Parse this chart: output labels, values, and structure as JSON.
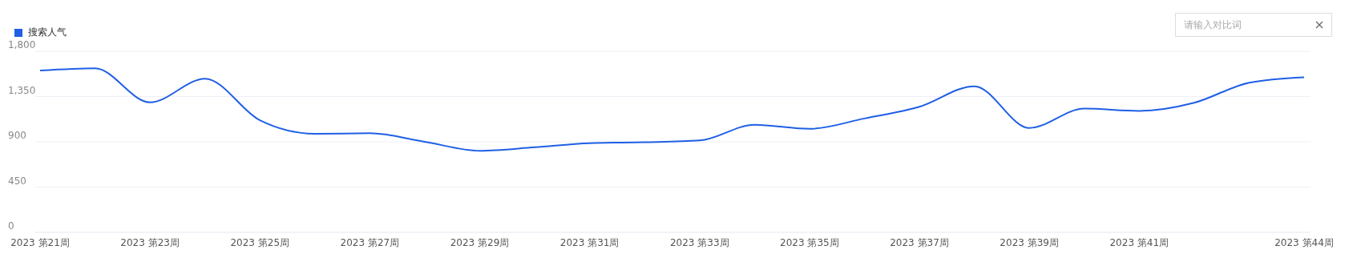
{
  "chart_data": {
    "type": "line",
    "categories": [
      "2023 第21周",
      null,
      "2023 第23周",
      null,
      "2023 第25周",
      null,
      "2023 第27周",
      null,
      "2023 第29周",
      null,
      "2023 第31周",
      null,
      "2023 第33周",
      null,
      "2023 第35周",
      null,
      "2023 第37周",
      null,
      "2023 第39周",
      null,
      "2023 第41周",
      null,
      null,
      "2023 第44周"
    ],
    "series": [
      {
        "name": "搜索人气",
        "color": "#1f5fe6",
        "values": [
          1608,
          1631,
          1292,
          1528,
          1114,
          980,
          985,
          900,
          811,
          846,
          887,
          896,
          913,
          1069,
          1029,
          1132,
          1248,
          1452,
          1038,
          1230,
          1207,
          1288,
          1488,
          1542
        ]
      }
    ],
    "ylim": [
      0,
      1800
    ],
    "yticks": [
      0,
      {
        "value": 450,
        "label": "450"
      },
      {
        "value": 900,
        "label": "900"
      },
      {
        "value": 1350,
        "label": "1,350"
      },
      {
        "value": 1800,
        "label": "1,800"
      }
    ],
    "grid": "y",
    "legend": "top left",
    "marker": "none",
    "line_style": "solid",
    "annotations": [
      "请输入对比词"
    ]
  }
}
